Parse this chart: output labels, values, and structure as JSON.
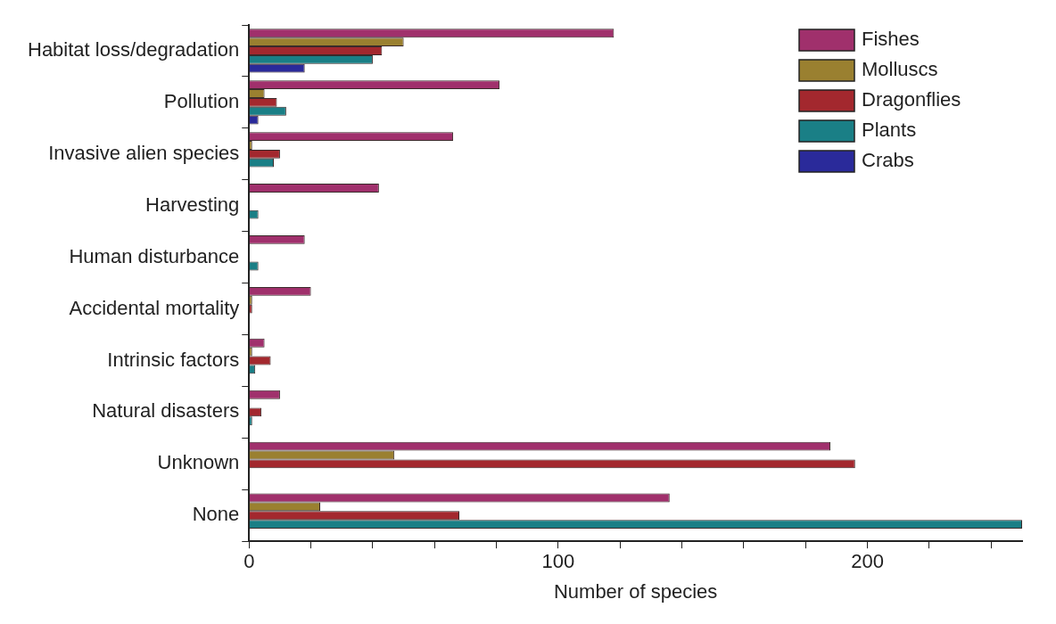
{
  "chart_data": {
    "type": "bar",
    "orientation": "horizontal",
    "xlabel": "Number of species",
    "categories": [
      "Habitat loss/degradation",
      "Pollution",
      "Invasive alien species",
      "Harvesting",
      "Human disturbance",
      "Accidental mortality",
      "Intrinsic factors",
      "Natural disasters",
      "Unknown",
      "None"
    ],
    "series": [
      {
        "name": "Fishes",
        "color": "#a0306c",
        "values": [
          118,
          81,
          66,
          42,
          18,
          20,
          5,
          10,
          188,
          136
        ]
      },
      {
        "name": "Molluscs",
        "color": "#9a8030",
        "values": [
          50,
          5,
          1,
          0,
          0,
          1,
          1,
          0,
          47,
          23
        ]
      },
      {
        "name": "Dragonflies",
        "color": "#a3282e",
        "values": [
          43,
          9,
          10,
          0,
          0,
          1,
          7,
          4,
          196,
          68
        ]
      },
      {
        "name": "Plants",
        "color": "#1a7f86",
        "values": [
          40,
          12,
          8,
          3,
          3,
          0,
          2,
          1,
          0,
          250
        ]
      },
      {
        "name": "Crabs",
        "color": "#2a2a9a",
        "values": [
          18,
          3,
          0,
          0,
          0,
          0,
          0,
          0,
          0,
          0
        ]
      }
    ],
    "xlim": [
      0,
      250
    ],
    "xticks": [
      0,
      {
        "value": 20,
        "label": null
      },
      {
        "value": 40,
        "label": null
      },
      {
        "value": 60,
        "label": null
      },
      {
        "value": 80,
        "label": null
      },
      100,
      {
        "value": 120,
        "label": null
      },
      {
        "value": 140,
        "label": null
      },
      {
        "value": 160,
        "label": null
      },
      {
        "value": 180,
        "label": null
      },
      200,
      {
        "value": 220,
        "label": null
      },
      {
        "value": 240,
        "label": null
      }
    ],
    "grid": false,
    "legend": "top right"
  }
}
